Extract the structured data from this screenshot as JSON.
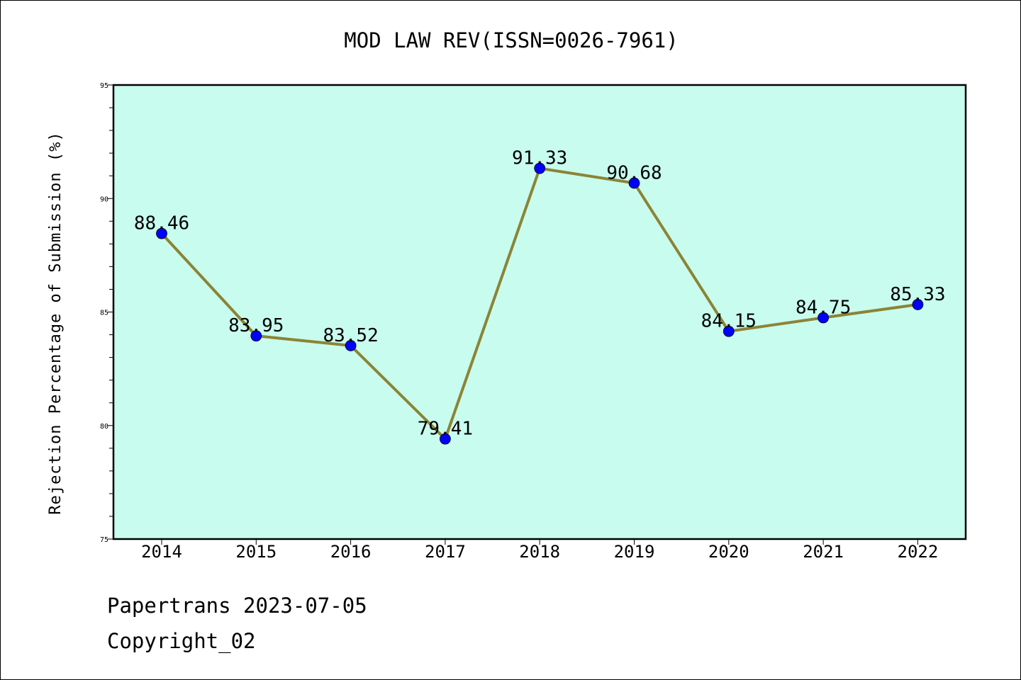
{
  "chart_data": {
    "type": "line",
    "title": "MOD LAW REV(ISSN=0026-7961)",
    "xlabel": "",
    "ylabel": "Rejection Percentage of Submission (%)",
    "categories": [
      "2014",
      "2015",
      "2016",
      "2017",
      "2018",
      "2019",
      "2020",
      "2021",
      "2022"
    ],
    "values": [
      88.46,
      83.95,
      83.52,
      79.41,
      91.33,
      90.68,
      84.15,
      84.75,
      85.33
    ],
    "data_labels": [
      "88.46",
      "83.95",
      "83.52",
      "79.41",
      "91.33",
      "90.68",
      "84.15",
      "84.75",
      "85.33"
    ],
    "ylim": [
      75,
      95
    ],
    "yticks": [
      "75",
      "80",
      "85",
      "90",
      "95"
    ],
    "grid": false,
    "legend": "none",
    "colors": {
      "plot_bg": "#c8fcee",
      "line": "#8b8436",
      "marker": "#0000ff"
    }
  },
  "footer": {
    "line1": "Papertrans 2023-07-05",
    "line2": "Copyright_02"
  }
}
